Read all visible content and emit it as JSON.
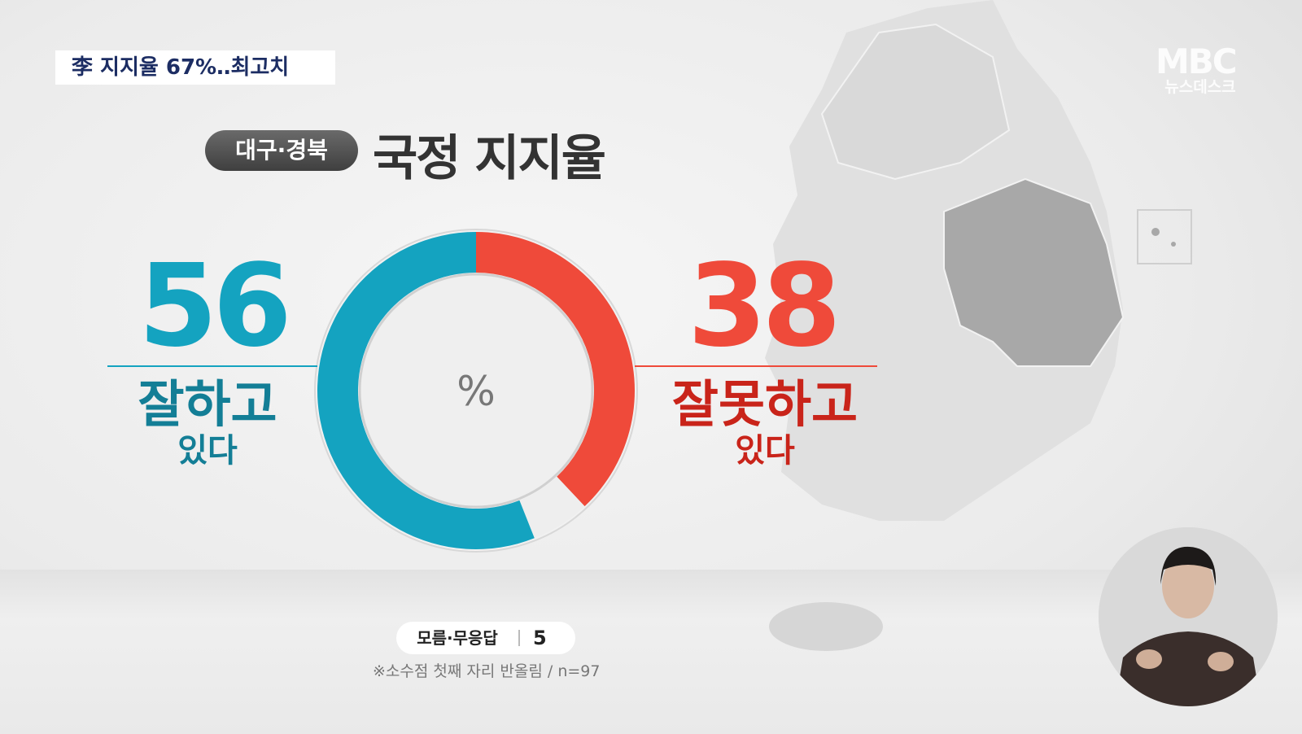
{
  "caption": "李 지지율 67%‥최고치",
  "logo": {
    "brand": "MBC",
    "program": "뉴스데스크"
  },
  "header": {
    "region": "대구·경북",
    "title": "국정 지지율"
  },
  "chart_data": {
    "type": "pie",
    "donut": true,
    "center_label": "%",
    "slices": [
      {
        "label": "잘하고 있다",
        "value": 56,
        "color": "#14a3c0"
      },
      {
        "label": "잘못하고 있다",
        "value": 38,
        "color": "#ef4a3a"
      },
      {
        "label": "모름·무응답",
        "value": 5,
        "color": "#eeeeee"
      }
    ],
    "labels": {
      "positive": {
        "value": "56",
        "line1": "잘하고",
        "line2": "있다"
      },
      "negative": {
        "value": "38",
        "line1": "잘못하고",
        "line2": "있다"
      },
      "unknown": {
        "label": "모름·무응답",
        "value": "5"
      }
    },
    "note": "※소수점 첫째 자리 반올림 / n=97"
  },
  "colors": {
    "positive": "#14a3c0",
    "negative": "#ef4a3a",
    "positive_text": "#137e96",
    "negative_text": "#c9241a"
  }
}
